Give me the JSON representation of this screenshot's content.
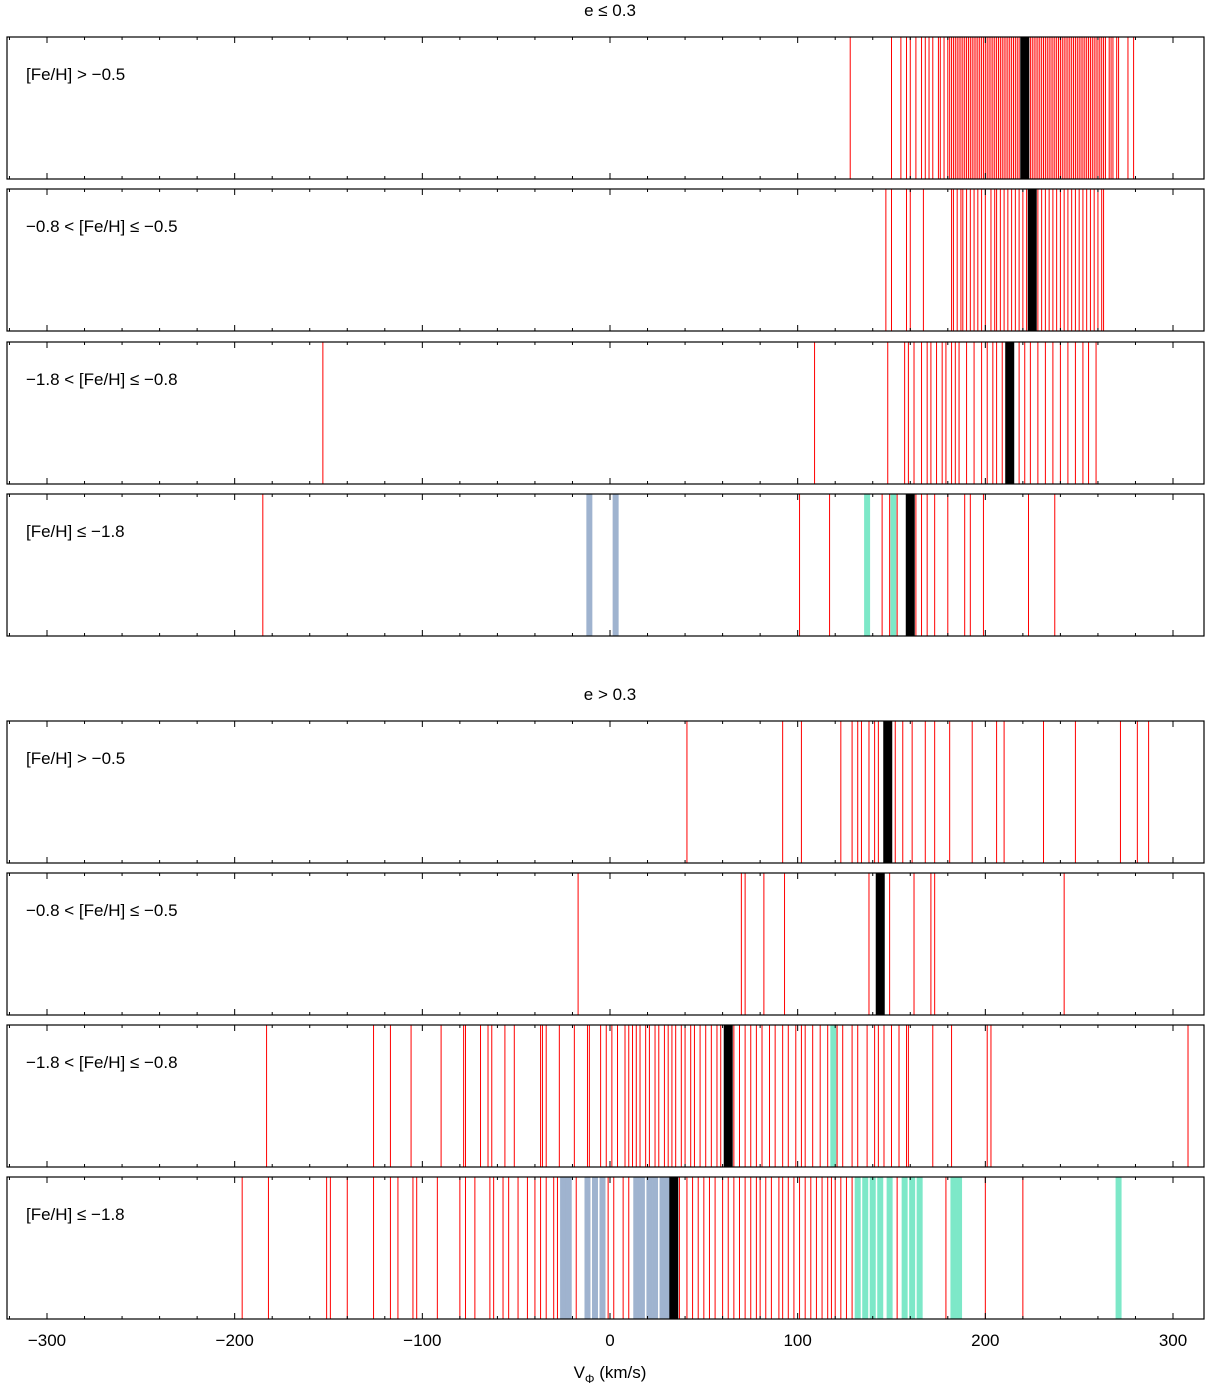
{
  "figure": {
    "title_top": "e ≤ 0.3",
    "title_bottom": "e > 0.3",
    "xlabel_main": "V",
    "xlabel_sub": "Φ",
    "xlabel_unit": " (km/s)",
    "x_tick_labels": [
      "−300",
      "−200",
      "−100",
      "0",
      "100",
      "200",
      "300"
    ]
  },
  "colors": {
    "star_line": "#ff0000",
    "mean_line": "#000000",
    "gray_highlight": "#9fb3cf",
    "teal_highlight": "#7de8c8"
  },
  "chart_data": {
    "type": "strip",
    "xlabel": "VΦ (km/s)",
    "xlim": [
      -320,
      320
    ],
    "xticks": [
      -300,
      -200,
      -100,
      0,
      100,
      200,
      300
    ],
    "groups": [
      {
        "title": "e ≤ 0.3",
        "panels": [
          {
            "label": "[Fe/H] > −0.5",
            "mean": 221,
            "gray": [],
            "teal": [],
            "values": [
              128,
              150,
              155,
              158,
              160,
              163,
              166,
              168,
              170,
              172,
              175,
              176,
              178,
              180,
              181,
              182,
              183,
              184,
              185,
              186,
              187,
              188,
              189,
              190,
              191,
              192,
              193,
              194,
              195,
              196,
              197,
              198,
              199,
              200,
              201,
              202,
              203,
              204,
              205,
              206,
              207,
              208,
              209,
              210,
              211,
              212,
              213,
              214,
              215,
              216,
              217,
              218,
              219,
              220,
              222,
              223,
              224,
              225,
              226,
              227,
              228,
              229,
              230,
              231,
              232,
              233,
              234,
              235,
              236,
              237,
              238,
              239,
              240,
              241,
              242,
              243,
              244,
              245,
              246,
              247,
              248,
              249,
              250,
              251,
              252,
              253,
              254,
              255,
              256,
              257,
              258,
              259,
              260,
              261,
              262,
              263,
              264,
              266,
              267,
              268,
              270,
              271,
              276,
              279
            ]
          },
          {
            "label": "−0.8 < [Fe/H] ≤ −0.5",
            "mean": 225,
            "gray": [],
            "teal": [],
            "values": [
              147,
              150,
              158,
              160,
              167,
              182,
              183,
              185,
              187,
              188,
              190,
              192,
              194,
              196,
              198,
              200,
              203,
              205,
              206,
              208,
              210,
              212,
              214,
              216,
              218,
              220,
              222,
              224,
              228,
              230,
              232,
              234,
              236,
              238,
              240,
              242,
              244,
              246,
              248,
              250,
              252,
              254,
              256,
              258,
              260,
              262,
              263
            ]
          },
          {
            "label": "−1.8 < [Fe/H] ≤ −0.8",
            "mean": 213,
            "gray": [],
            "teal": [],
            "values": [
              -153,
              109,
              148,
              157,
              159,
              162,
              166,
              169,
              171,
              174,
              177,
              179,
              182,
              184,
              186,
              190,
              194,
              198,
              201,
              204,
              206,
              209,
              211,
              218,
              221,
              224,
              228,
              232,
              236,
              240,
              244,
              248,
              252,
              255,
              259
            ]
          },
          {
            "label": "[Fe/H] ≤ −1.8",
            "mean": 160,
            "gray": [
              -11,
              3
            ],
            "teal": [
              137,
              151
            ],
            "values": [
              -185,
              101,
              117,
              145,
              149,
              153,
              163,
              166,
              169,
              173,
              180,
              189,
              192,
              199,
              223,
              237
            ]
          }
        ]
      },
      {
        "title": "e > 0.3",
        "panels": [
          {
            "label": "[Fe/H] > −0.5",
            "mean": 148,
            "gray": [],
            "teal": [],
            "values": [
              41,
              92,
              102,
              123,
              129,
              132,
              134,
              138,
              141,
              143,
              152,
              156,
              161,
              168,
              173,
              181,
              193,
              206,
              210,
              231,
              248,
              272,
              281,
              287
            ]
          },
          {
            "label": "−0.8 < [Fe/H] ≤ −0.5",
            "mean": 144,
            "gray": [],
            "teal": [],
            "values": [
              -17,
              70,
              72,
              82,
              93,
              138,
              149,
              162,
              171,
              173,
              242
            ]
          },
          {
            "label": "−1.8 < [Fe/H] ≤ −0.8",
            "mean": 63,
            "gray": [],
            "teal": [
              119
            ],
            "values": [
              -183,
              -126,
              -117,
              -106,
              -90,
              -78,
              -77,
              -69,
              -65,
              -63,
              -56,
              -51,
              -37,
              -36,
              -34,
              -27,
              -19,
              -12,
              -11,
              -5,
              -2,
              1,
              4,
              8,
              10,
              12,
              14,
              16,
              19,
              21,
              24,
              26,
              29,
              31,
              33,
              35,
              38,
              40,
              43,
              45,
              48,
              51,
              54,
              57,
              59,
              66,
              69,
              72,
              75,
              78,
              81,
              85,
              88,
              92,
              95,
              99,
              102,
              104,
              108,
              112,
              116,
              121,
              124,
              129,
              132,
              137,
              141,
              143,
              146,
              150,
              154,
              158,
              159,
              172,
              182,
              201,
              203,
              308
            ]
          },
          {
            "label": "[Fe/H] ≤ −1.8",
            "mean": 34,
            "gray": [
              -25,
              -22,
              -12,
              -8,
              -4,
              14,
              17,
              21,
              24,
              28,
              31
            ],
            "teal": [
              132,
              136,
              140,
              144,
              149,
              157,
              161,
              165,
              183,
              186,
              271
            ],
            "values": [
              -196,
              -182,
              -151,
              -149,
              -140,
              -126,
              -117,
              -113,
              -105,
              -103,
              -92,
              -80,
              -77,
              -72,
              -64,
              -62,
              -57,
              -54,
              -49,
              -44,
              -40,
              -37,
              -34,
              -30,
              -28,
              -18,
              -1,
              2,
              7,
              10,
              37,
              41,
              44,
              47,
              50,
              53,
              56,
              60,
              63,
              66,
              69,
              72,
              75,
              78,
              80,
              83,
              86,
              90,
              92,
              95,
              98,
              101,
              104,
              107,
              110,
              113,
              116,
              118,
              120,
              123,
              126,
              129,
              153,
              179,
              200,
              220
            ]
          }
        ]
      }
    ]
  }
}
